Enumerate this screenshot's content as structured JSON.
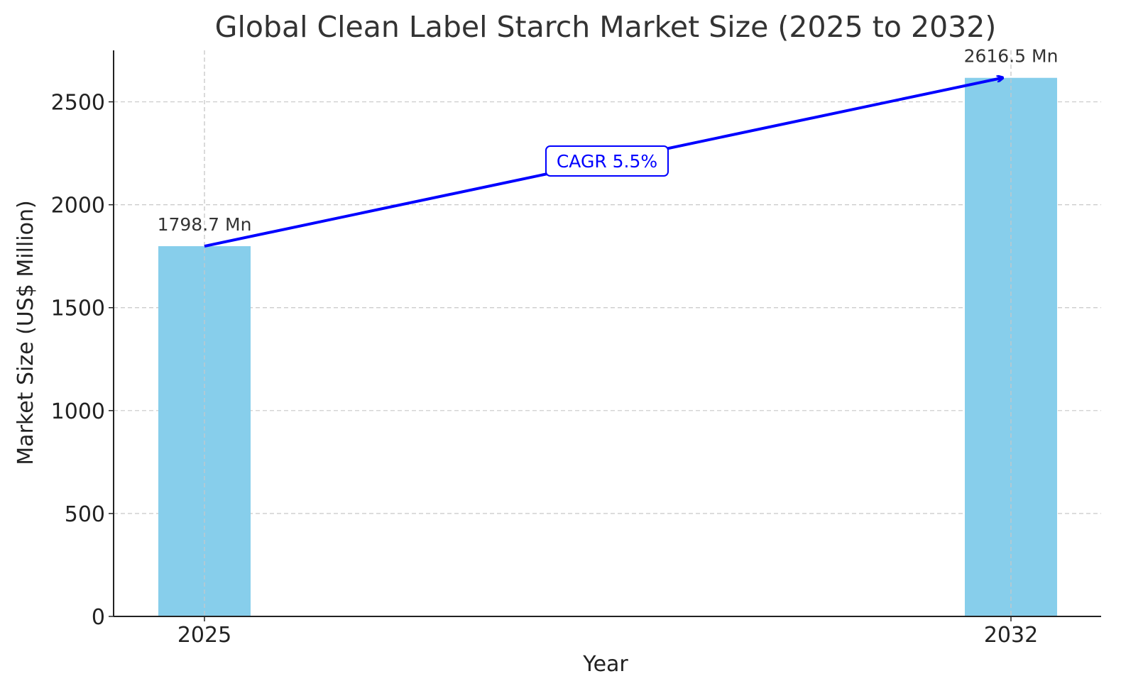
{
  "chart_data": {
    "type": "bar",
    "title": "Global Clean Label Starch Market Size (2025 to 2032)",
    "xlabel": "Year",
    "ylabel": "Market Size (US$ Million)",
    "categories": [
      "2025",
      "2032"
    ],
    "values": [
      1798.7,
      2616.5
    ],
    "data_labels": [
      "1798.7 Mn",
      "2616.5 Mn"
    ],
    "ylim": [
      0,
      2750
    ],
    "yticks": [
      0,
      500,
      1000,
      1500,
      2000,
      2500
    ],
    "grid": true,
    "annotation": {
      "text": "CAGR 5.5%",
      "from": {
        "x": "2025",
        "y": 1798.7
      },
      "to": {
        "x": "2032",
        "y": 2616.5
      }
    },
    "colors": {
      "bar": "#87CEEB",
      "arrow": "#0000FF",
      "annotation_text": "#0000FF",
      "title": "#333333",
      "axis": "#222222",
      "grid": "#c8c8c8"
    }
  }
}
